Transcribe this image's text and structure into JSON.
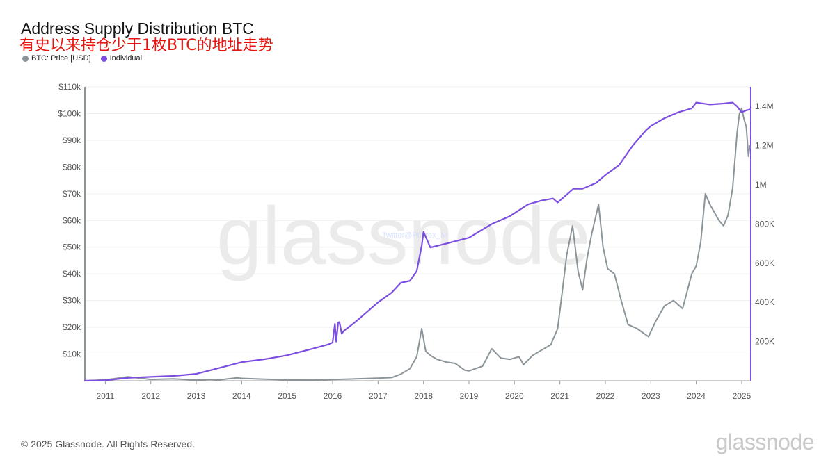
{
  "header": {
    "title": "Address Supply Distribution BTC",
    "subtitle": "有史以来持仓少于1枚BTC的地址走势"
  },
  "legend": {
    "items": [
      {
        "label": "BTC: Price [USD]",
        "color": "#8a9499"
      },
      {
        "label": "Individual",
        "color": "#7b4de0"
      }
    ]
  },
  "watermark": "glassnode",
  "overlay_text": "Twitter@Phyrex_Ni",
  "footer": {
    "copyright": "© 2025 Glassnode. All Rights Reserved.",
    "brand": "glassnode"
  },
  "chart_data": {
    "type": "line",
    "title": "Address Supply Distribution BTC",
    "x_ticks": [
      "2011",
      "2012",
      "2013",
      "2014",
      "2015",
      "2016",
      "2017",
      "2018",
      "2019",
      "2020",
      "2021",
      "2022",
      "2023",
      "2024",
      "2025"
    ],
    "xlim": [
      2010.55,
      2025.2
    ],
    "y_left": {
      "label": "",
      "lim": [
        0,
        110000
      ],
      "ticks": [
        "$10k",
        "$20k",
        "$30k",
        "$40k",
        "$50k",
        "$60k",
        "$70k",
        "$80k",
        "$90k",
        "$100k",
        "$110k"
      ],
      "tick_values": [
        10000,
        20000,
        30000,
        40000,
        50000,
        60000,
        70000,
        80000,
        90000,
        100000,
        110000
      ]
    },
    "y_right": {
      "label": "",
      "lim": [
        0,
        1500000
      ],
      "ticks": [
        "200K",
        "400K",
        "600K",
        "800K",
        "1M",
        "1.2M",
        "1.4M"
      ],
      "tick_values": [
        200000,
        400000,
        600000,
        800000,
        1000000,
        1200000,
        1400000
      ]
    },
    "series": [
      {
        "name": "BTC: Price [USD]",
        "axis": "left",
        "color": "#8a9499",
        "x": [
          2010.55,
          2011.0,
          2011.5,
          2012.0,
          2012.5,
          2013.0,
          2013.3,
          2013.5,
          2013.9,
          2014.0,
          2014.5,
          2015.0,
          2015.5,
          2016.0,
          2016.5,
          2017.0,
          2017.3,
          2017.5,
          2017.7,
          2017.85,
          2017.96,
          2018.05,
          2018.15,
          2018.3,
          2018.5,
          2018.7,
          2018.9,
          2019.0,
          2019.3,
          2019.5,
          2019.7,
          2019.9,
          2020.1,
          2020.2,
          2020.4,
          2020.6,
          2020.8,
          2020.95,
          2021.05,
          2021.15,
          2021.28,
          2021.4,
          2021.5,
          2021.6,
          2021.7,
          2021.85,
          2021.95,
          2022.05,
          2022.2,
          2022.35,
          2022.5,
          2022.7,
          2022.95,
          2023.1,
          2023.3,
          2023.5,
          2023.7,
          2023.9,
          2024.0,
          2024.1,
          2024.2,
          2024.3,
          2024.4,
          2024.5,
          2024.6,
          2024.7,
          2024.8,
          2024.9,
          2024.95,
          2025.0,
          2025.05,
          2025.1,
          2025.15,
          2025.18
        ],
        "y": [
          0,
          300,
          1500,
          500,
          700,
          250,
          500,
          300,
          1100,
          900,
          600,
          300,
          250,
          450,
          700,
          1000,
          1200,
          2500,
          4500,
          9000,
          19500,
          11000,
          9500,
          8000,
          7000,
          6500,
          4000,
          3700,
          5500,
          12000,
          8500,
          8000,
          9000,
          6000,
          9500,
          11500,
          13500,
          19500,
          33000,
          47000,
          58000,
          41000,
          34000,
          46000,
          55000,
          66000,
          50000,
          42000,
          40000,
          30000,
          21000,
          19500,
          16500,
          22000,
          28000,
          30000,
          27000,
          40000,
          43000,
          52000,
          70000,
          66000,
          63000,
          60000,
          58000,
          62000,
          72000,
          93000,
          100000,
          102000,
          98000,
          95000,
          84000,
          88000
        ]
      },
      {
        "name": "Individual",
        "axis": "right",
        "color": "#7b4de0",
        "x": [
          2010.55,
          2011.0,
          2011.5,
          2012.0,
          2012.5,
          2013.0,
          2013.5,
          2014.0,
          2014.5,
          2015.0,
          2015.5,
          2015.9,
          2016.0,
          2016.05,
          2016.08,
          2016.12,
          2016.15,
          2016.2,
          2016.25,
          2016.5,
          2017.0,
          2017.3,
          2017.5,
          2017.7,
          2017.85,
          2017.96,
          2018.0,
          2018.15,
          2018.5,
          2019.0,
          2019.5,
          2019.9,
          2020.3,
          2020.6,
          2020.85,
          2020.95,
          2021.1,
          2021.3,
          2021.5,
          2021.8,
          2022.0,
          2022.3,
          2022.6,
          2022.9,
          2023.0,
          2023.3,
          2023.6,
          2023.9,
          2024.0,
          2024.3,
          2024.6,
          2024.8,
          2024.9,
          2025.0,
          2025.1,
          2025.18
        ],
        "y": [
          0,
          2000,
          15000,
          20000,
          25000,
          35000,
          65000,
          95000,
          110000,
          130000,
          160000,
          185000,
          195000,
          290000,
          200000,
          295000,
          300000,
          240000,
          255000,
          300000,
          400000,
          450000,
          500000,
          510000,
          560000,
          690000,
          760000,
          680000,
          700000,
          730000,
          800000,
          840000,
          900000,
          920000,
          930000,
          910000,
          940000,
          980000,
          980000,
          1010000,
          1050000,
          1100000,
          1200000,
          1280000,
          1300000,
          1340000,
          1370000,
          1390000,
          1420000,
          1410000,
          1415000,
          1420000,
          1400000,
          1370000,
          1380000,
          1385000
        ]
      }
    ],
    "grid": true,
    "legend_position": "top-left"
  }
}
